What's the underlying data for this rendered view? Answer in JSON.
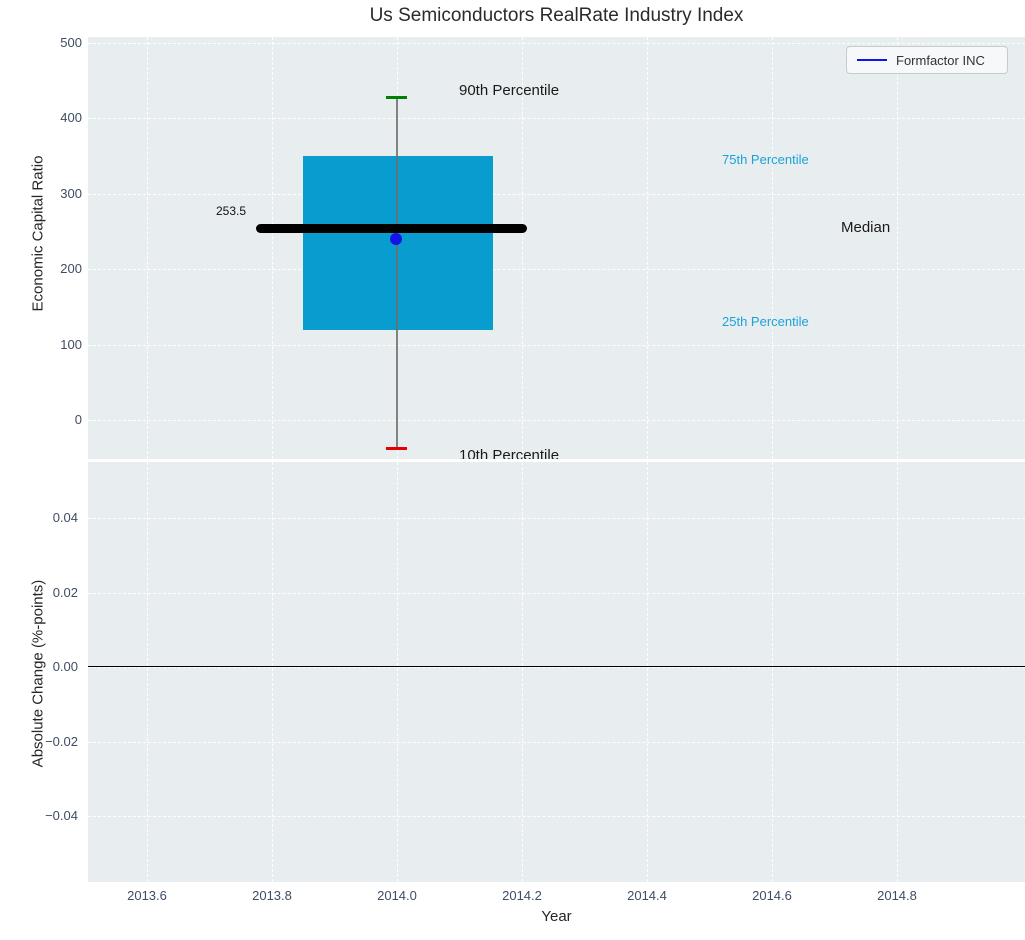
{
  "title": "Us Semiconductors RealRate Industry Index",
  "legend": {
    "label": "Formfactor INC",
    "line_color": "#1414e6"
  },
  "top_chart": {
    "ylabel": "Economic Capital Ratio",
    "yticks": [
      "500",
      "400",
      "300",
      "200",
      "100",
      "0"
    ],
    "annotations": {
      "p90": "90th Percentile",
      "p75": "75th Percentile",
      "median": "Median",
      "p25": "25th Percentile",
      "p10": "10th Percentile",
      "median_value_label": "253.5"
    }
  },
  "bottom_chart": {
    "ylabel": "Absolute Change (%-points)",
    "xlabel": "Year",
    "yticks": [
      "0.04",
      "0.02",
      "0.00",
      "−0.02",
      "−0.04"
    ],
    "xticks": [
      "2013.6",
      "2013.8",
      "2014.0",
      "2014.2",
      "2014.4",
      "2014.6",
      "2014.8"
    ]
  },
  "colors": {
    "plot_background": "#e8edef",
    "box_fill": "#089ccf",
    "median_line": "#000000",
    "whisker_line": "#6e6e6e",
    "p90_cap": "#008000",
    "p10_cap": "#e60000",
    "company_point": "#1414e6",
    "percentile_text_cyan": "#1da2d8",
    "tick_label": "#3e4d63"
  },
  "chart_data": [
    {
      "type": "box",
      "title": "Us Semiconductors RealRate Industry Index",
      "ylabel": "Economic Capital Ratio",
      "x": 2014.0,
      "box_width_years": 0.3,
      "stats": {
        "p10": -37,
        "p25": 120,
        "median": 253.5,
        "p75": 350,
        "p90": 426
      },
      "median_data_label": 253.5,
      "company_point": {
        "name": "Formfactor INC",
        "x": 2014.0,
        "y": 240
      },
      "ylim": [
        -52,
        500
      ],
      "grid": true,
      "legend_position": "upper right",
      "annotations": [
        "90th Percentile",
        "75th Percentile",
        "Median",
        "25th Percentile",
        "10th Percentile"
      ]
    },
    {
      "type": "line",
      "ylabel": "Absolute Change (%-points)",
      "xlabel": "Year",
      "xlim": [
        2013.5,
        2015.0
      ],
      "ylim": [
        -0.057,
        0.055
      ],
      "grid": true,
      "series": [],
      "zero_line_y": 0.0
    }
  ]
}
